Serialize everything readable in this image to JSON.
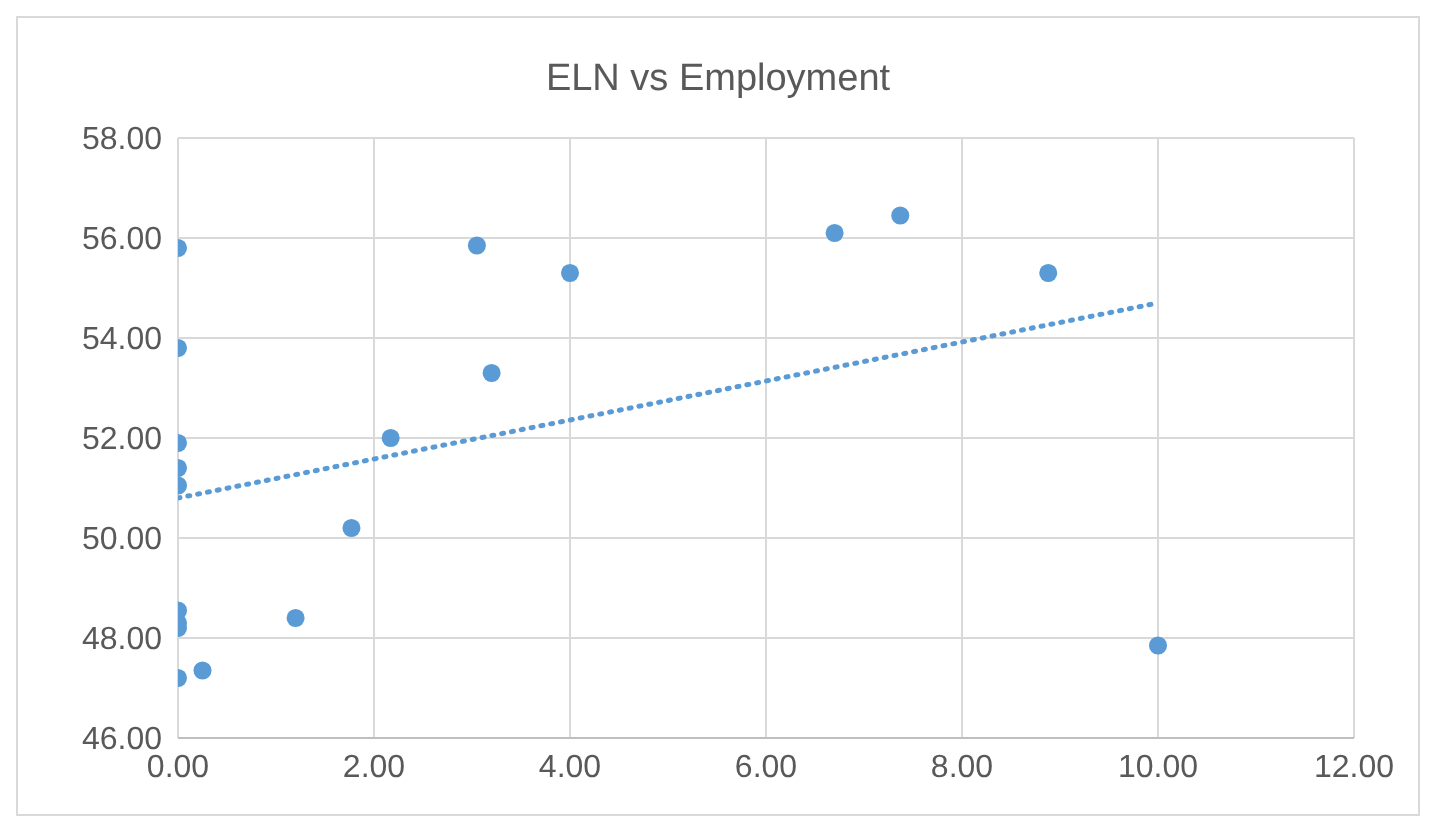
{
  "chart_data": {
    "type": "scatter",
    "title": "ELN vs Employment",
    "xlim": [
      0,
      12
    ],
    "xticks": [
      {
        "value": 0,
        "label": "0.00"
      },
      {
        "value": 2,
        "label": "2.00"
      },
      {
        "value": 4,
        "label": "4.00"
      },
      {
        "value": 6,
        "label": "6.00"
      },
      {
        "value": 8,
        "label": "8.00"
      },
      {
        "value": 10,
        "label": "10.00"
      },
      {
        "value": 12,
        "label": "12.00"
      }
    ],
    "ylim": [
      46,
      58
    ],
    "yticks": [
      {
        "value": 46,
        "label": "46.00"
      },
      {
        "value": 48,
        "label": "48.00"
      },
      {
        "value": 50,
        "label": "50.00"
      },
      {
        "value": 52,
        "label": "52.00"
      },
      {
        "value": 54,
        "label": "54.00"
      },
      {
        "value": 56,
        "label": "56.00"
      },
      {
        "value": 58,
        "label": "58.00"
      }
    ],
    "grid": true,
    "series": [
      {
        "color": "#5b9bd5",
        "marker": "circle",
        "x": [
          0,
          0,
          0,
          0,
          0,
          0,
          0,
          0,
          0,
          0.25,
          1.2,
          1.77,
          2.17,
          3.05,
          3.2,
          4.0,
          6.7,
          7.37,
          8.88,
          10.0
        ],
        "values": [
          55.8,
          53.8,
          51.9,
          51.4,
          51.05,
          48.55,
          48.3,
          48.2,
          47.2,
          47.35,
          48.4,
          50.2,
          52.0,
          55.85,
          53.3,
          55.3,
          56.1,
          56.45,
          55.3,
          47.85
        ]
      },
      {
        "type": "line",
        "color": "#5b9bd5",
        "line_style": "dotted",
        "marker": "none",
        "x": [
          0,
          10
        ],
        "values": [
          50.8,
          54.7
        ]
      }
    ]
  }
}
